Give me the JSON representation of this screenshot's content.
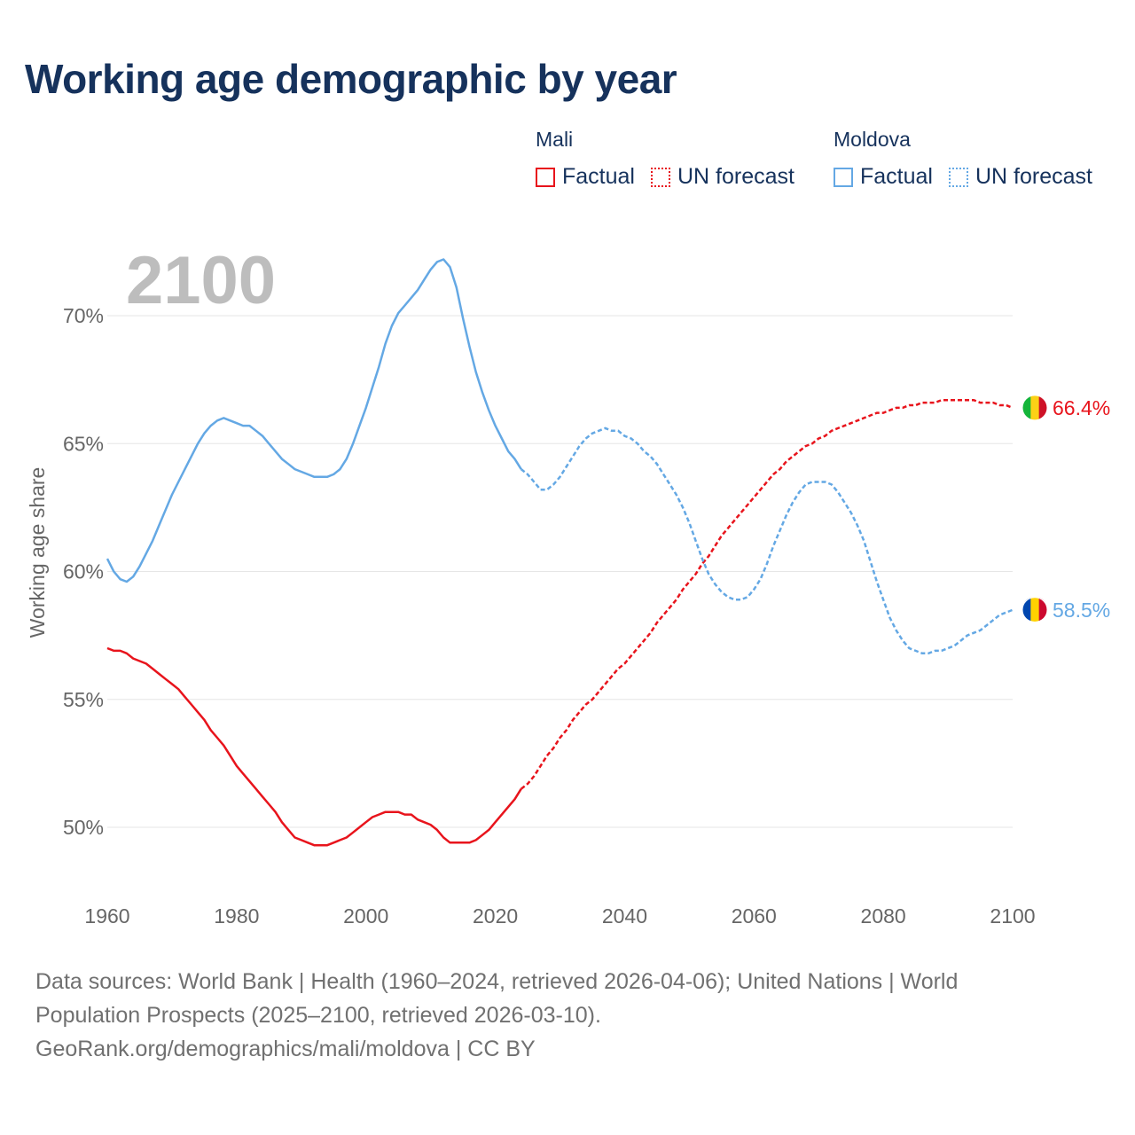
{
  "title": "Working age demographic by year",
  "legend": [
    {
      "name": "Mali",
      "color": "#e8141c",
      "factual_label": "Factual",
      "forecast_label": "UN forecast"
    },
    {
      "name": "Moldova",
      "color": "#64a8e4",
      "factual_label": "Factual",
      "forecast_label": "UN forecast"
    }
  ],
  "footer": {
    "line1": "Data sources: World Bank | Health (1960–2024, retrieved 2026-04-06); United Nations | World",
    "line2": "Population Prospects (2025–2100, retrieved 2026-03-10).",
    "line3": "GeoRank.org/demographics/mali/moldova | CC BY"
  },
  "chart_data": {
    "type": "line",
    "title": "Working age demographic by year",
    "current_year_label": "2100",
    "xlabel": "",
    "ylabel": "Working age share",
    "xlim": [
      1960,
      2100
    ],
    "ylim": [
      48,
      73
    ],
    "x_ticks": [
      1960,
      1980,
      2000,
      2020,
      2040,
      2060,
      2080,
      2100
    ],
    "y_ticks": [
      50,
      55,
      60,
      65,
      70
    ],
    "y_tick_labels": [
      "50%",
      "55%",
      "60%",
      "65%",
      "70%"
    ],
    "factual_until": 2024,
    "series": [
      {
        "name": "Mali",
        "color": "#e8141c",
        "end_label": "66.4%",
        "flag_colors": [
          "#14b53a",
          "#fcd116",
          "#ce1126"
        ],
        "points": [
          [
            1960,
            57.0
          ],
          [
            1961,
            56.9
          ],
          [
            1962,
            56.9
          ],
          [
            1963,
            56.8
          ],
          [
            1964,
            56.6
          ],
          [
            1965,
            56.5
          ],
          [
            1966,
            56.4
          ],
          [
            1967,
            56.2
          ],
          [
            1968,
            56.0
          ],
          [
            1969,
            55.8
          ],
          [
            1970,
            55.6
          ],
          [
            1971,
            55.4
          ],
          [
            1972,
            55.1
          ],
          [
            1973,
            54.8
          ],
          [
            1974,
            54.5
          ],
          [
            1975,
            54.2
          ],
          [
            1976,
            53.8
          ],
          [
            1977,
            53.5
          ],
          [
            1978,
            53.2
          ],
          [
            1979,
            52.8
          ],
          [
            1980,
            52.4
          ],
          [
            1981,
            52.1
          ],
          [
            1982,
            51.8
          ],
          [
            1983,
            51.5
          ],
          [
            1984,
            51.2
          ],
          [
            1985,
            50.9
          ],
          [
            1986,
            50.6
          ],
          [
            1987,
            50.2
          ],
          [
            1988,
            49.9
          ],
          [
            1989,
            49.6
          ],
          [
            1990,
            49.5
          ],
          [
            1991,
            49.4
          ],
          [
            1992,
            49.3
          ],
          [
            1993,
            49.3
          ],
          [
            1994,
            49.3
          ],
          [
            1995,
            49.4
          ],
          [
            1996,
            49.5
          ],
          [
            1997,
            49.6
          ],
          [
            1998,
            49.8
          ],
          [
            1999,
            50.0
          ],
          [
            2000,
            50.2
          ],
          [
            2001,
            50.4
          ],
          [
            2002,
            50.5
          ],
          [
            2003,
            50.6
          ],
          [
            2004,
            50.6
          ],
          [
            2005,
            50.6
          ],
          [
            2006,
            50.5
          ],
          [
            2007,
            50.5
          ],
          [
            2008,
            50.3
          ],
          [
            2009,
            50.2
          ],
          [
            2010,
            50.1
          ],
          [
            2011,
            49.9
          ],
          [
            2012,
            49.6
          ],
          [
            2013,
            49.4
          ],
          [
            2014,
            49.4
          ],
          [
            2015,
            49.4
          ],
          [
            2016,
            49.4
          ],
          [
            2017,
            49.5
          ],
          [
            2018,
            49.7
          ],
          [
            2019,
            49.9
          ],
          [
            2020,
            50.2
          ],
          [
            2021,
            50.5
          ],
          [
            2022,
            50.8
          ],
          [
            2023,
            51.1
          ],
          [
            2024,
            51.5
          ],
          [
            2025,
            51.7
          ],
          [
            2026,
            52.0
          ],
          [
            2027,
            52.4
          ],
          [
            2028,
            52.8
          ],
          [
            2029,
            53.1
          ],
          [
            2030,
            53.5
          ],
          [
            2031,
            53.8
          ],
          [
            2032,
            54.2
          ],
          [
            2033,
            54.5
          ],
          [
            2034,
            54.8
          ],
          [
            2035,
            55.0
          ],
          [
            2036,
            55.3
          ],
          [
            2037,
            55.6
          ],
          [
            2038,
            55.9
          ],
          [
            2039,
            56.2
          ],
          [
            2040,
            56.4
          ],
          [
            2041,
            56.7
          ],
          [
            2042,
            57.0
          ],
          [
            2043,
            57.3
          ],
          [
            2044,
            57.6
          ],
          [
            2045,
            58.0
          ],
          [
            2046,
            58.3
          ],
          [
            2047,
            58.6
          ],
          [
            2048,
            58.9
          ],
          [
            2049,
            59.3
          ],
          [
            2050,
            59.6
          ],
          [
            2051,
            59.9
          ],
          [
            2052,
            60.3
          ],
          [
            2053,
            60.6
          ],
          [
            2054,
            61.0
          ],
          [
            2055,
            61.4
          ],
          [
            2056,
            61.7
          ],
          [
            2057,
            62.0
          ],
          [
            2058,
            62.3
          ],
          [
            2059,
            62.6
          ],
          [
            2060,
            62.9
          ],
          [
            2061,
            63.2
          ],
          [
            2062,
            63.5
          ],
          [
            2063,
            63.8
          ],
          [
            2064,
            64.0
          ],
          [
            2065,
            64.3
          ],
          [
            2066,
            64.5
          ],
          [
            2067,
            64.7
          ],
          [
            2068,
            64.9
          ],
          [
            2069,
            65.0
          ],
          [
            2070,
            65.2
          ],
          [
            2071,
            65.3
          ],
          [
            2072,
            65.5
          ],
          [
            2073,
            65.6
          ],
          [
            2074,
            65.7
          ],
          [
            2075,
            65.8
          ],
          [
            2076,
            65.9
          ],
          [
            2077,
            66.0
          ],
          [
            2078,
            66.1
          ],
          [
            2079,
            66.2
          ],
          [
            2080,
            66.2
          ],
          [
            2081,
            66.3
          ],
          [
            2082,
            66.4
          ],
          [
            2083,
            66.4
          ],
          [
            2084,
            66.5
          ],
          [
            2085,
            66.5
          ],
          [
            2086,
            66.6
          ],
          [
            2087,
            66.6
          ],
          [
            2088,
            66.6
          ],
          [
            2089,
            66.7
          ],
          [
            2090,
            66.7
          ],
          [
            2091,
            66.7
          ],
          [
            2092,
            66.7
          ],
          [
            2093,
            66.7
          ],
          [
            2094,
            66.7
          ],
          [
            2095,
            66.6
          ],
          [
            2096,
            66.6
          ],
          [
            2097,
            66.6
          ],
          [
            2098,
            66.5
          ],
          [
            2099,
            66.5
          ],
          [
            2100,
            66.4
          ]
        ]
      },
      {
        "name": "Moldova",
        "color": "#64a8e4",
        "end_label": "58.5%",
        "flag_colors": [
          "#0046ae",
          "#ffd200",
          "#cc092f"
        ],
        "points": [
          [
            1960,
            60.5
          ],
          [
            1961,
            60.0
          ],
          [
            1962,
            59.7
          ],
          [
            1963,
            59.6
          ],
          [
            1964,
            59.8
          ],
          [
            1965,
            60.2
          ],
          [
            1966,
            60.7
          ],
          [
            1967,
            61.2
          ],
          [
            1968,
            61.8
          ],
          [
            1969,
            62.4
          ],
          [
            1970,
            63.0
          ],
          [
            1971,
            63.5
          ],
          [
            1972,
            64.0
          ],
          [
            1973,
            64.5
          ],
          [
            1974,
            65.0
          ],
          [
            1975,
            65.4
          ],
          [
            1976,
            65.7
          ],
          [
            1977,
            65.9
          ],
          [
            1978,
            66.0
          ],
          [
            1979,
            65.9
          ],
          [
            1980,
            65.8
          ],
          [
            1981,
            65.7
          ],
          [
            1982,
            65.7
          ],
          [
            1983,
            65.5
          ],
          [
            1984,
            65.3
          ],
          [
            1985,
            65.0
          ],
          [
            1986,
            64.7
          ],
          [
            1987,
            64.4
          ],
          [
            1988,
            64.2
          ],
          [
            1989,
            64.0
          ],
          [
            1990,
            63.9
          ],
          [
            1991,
            63.8
          ],
          [
            1992,
            63.7
          ],
          [
            1993,
            63.7
          ],
          [
            1994,
            63.7
          ],
          [
            1995,
            63.8
          ],
          [
            1996,
            64.0
          ],
          [
            1997,
            64.4
          ],
          [
            1998,
            65.0
          ],
          [
            1999,
            65.7
          ],
          [
            2000,
            66.4
          ],
          [
            2001,
            67.2
          ],
          [
            2002,
            68.0
          ],
          [
            2003,
            68.9
          ],
          [
            2004,
            69.6
          ],
          [
            2005,
            70.1
          ],
          [
            2006,
            70.4
          ],
          [
            2007,
            70.7
          ],
          [
            2008,
            71.0
          ],
          [
            2009,
            71.4
          ],
          [
            2010,
            71.8
          ],
          [
            2011,
            72.1
          ],
          [
            2012,
            72.2
          ],
          [
            2013,
            71.9
          ],
          [
            2014,
            71.1
          ],
          [
            2015,
            69.9
          ],
          [
            2016,
            68.8
          ],
          [
            2017,
            67.8
          ],
          [
            2018,
            67.0
          ],
          [
            2019,
            66.3
          ],
          [
            2020,
            65.7
          ],
          [
            2021,
            65.2
          ],
          [
            2022,
            64.7
          ],
          [
            2023,
            64.4
          ],
          [
            2024,
            64.0
          ],
          [
            2025,
            63.8
          ],
          [
            2026,
            63.5
          ],
          [
            2027,
            63.2
          ],
          [
            2028,
            63.2
          ],
          [
            2029,
            63.4
          ],
          [
            2030,
            63.7
          ],
          [
            2031,
            64.1
          ],
          [
            2032,
            64.5
          ],
          [
            2033,
            64.9
          ],
          [
            2034,
            65.2
          ],
          [
            2035,
            65.4
          ],
          [
            2036,
            65.5
          ],
          [
            2037,
            65.6
          ],
          [
            2038,
            65.5
          ],
          [
            2039,
            65.5
          ],
          [
            2040,
            65.3
          ],
          [
            2041,
            65.2
          ],
          [
            2042,
            65.0
          ],
          [
            2043,
            64.7
          ],
          [
            2044,
            64.5
          ],
          [
            2045,
            64.2
          ],
          [
            2046,
            63.8
          ],
          [
            2047,
            63.4
          ],
          [
            2048,
            63.0
          ],
          [
            2049,
            62.5
          ],
          [
            2050,
            61.9
          ],
          [
            2051,
            61.2
          ],
          [
            2052,
            60.5
          ],
          [
            2053,
            59.9
          ],
          [
            2054,
            59.5
          ],
          [
            2055,
            59.2
          ],
          [
            2056,
            59.0
          ],
          [
            2057,
            58.9
          ],
          [
            2058,
            58.9
          ],
          [
            2059,
            59.0
          ],
          [
            2060,
            59.3
          ],
          [
            2061,
            59.7
          ],
          [
            2062,
            60.3
          ],
          [
            2063,
            61.0
          ],
          [
            2064,
            61.6
          ],
          [
            2065,
            62.2
          ],
          [
            2066,
            62.7
          ],
          [
            2067,
            63.1
          ],
          [
            2068,
            63.4
          ],
          [
            2069,
            63.5
          ],
          [
            2070,
            63.5
          ],
          [
            2071,
            63.5
          ],
          [
            2072,
            63.4
          ],
          [
            2073,
            63.1
          ],
          [
            2074,
            62.7
          ],
          [
            2075,
            62.3
          ],
          [
            2076,
            61.8
          ],
          [
            2077,
            61.2
          ],
          [
            2078,
            60.4
          ],
          [
            2079,
            59.6
          ],
          [
            2080,
            58.9
          ],
          [
            2081,
            58.2
          ],
          [
            2082,
            57.7
          ],
          [
            2083,
            57.3
          ],
          [
            2084,
            57.0
          ],
          [
            2085,
            56.9
          ],
          [
            2086,
            56.8
          ],
          [
            2087,
            56.8
          ],
          [
            2088,
            56.9
          ],
          [
            2089,
            56.9
          ],
          [
            2090,
            57.0
          ],
          [
            2091,
            57.1
          ],
          [
            2092,
            57.3
          ],
          [
            2093,
            57.5
          ],
          [
            2094,
            57.6
          ],
          [
            2095,
            57.7
          ],
          [
            2096,
            57.9
          ],
          [
            2097,
            58.1
          ],
          [
            2098,
            58.3
          ],
          [
            2099,
            58.4
          ],
          [
            2100,
            58.5
          ]
        ]
      }
    ]
  }
}
